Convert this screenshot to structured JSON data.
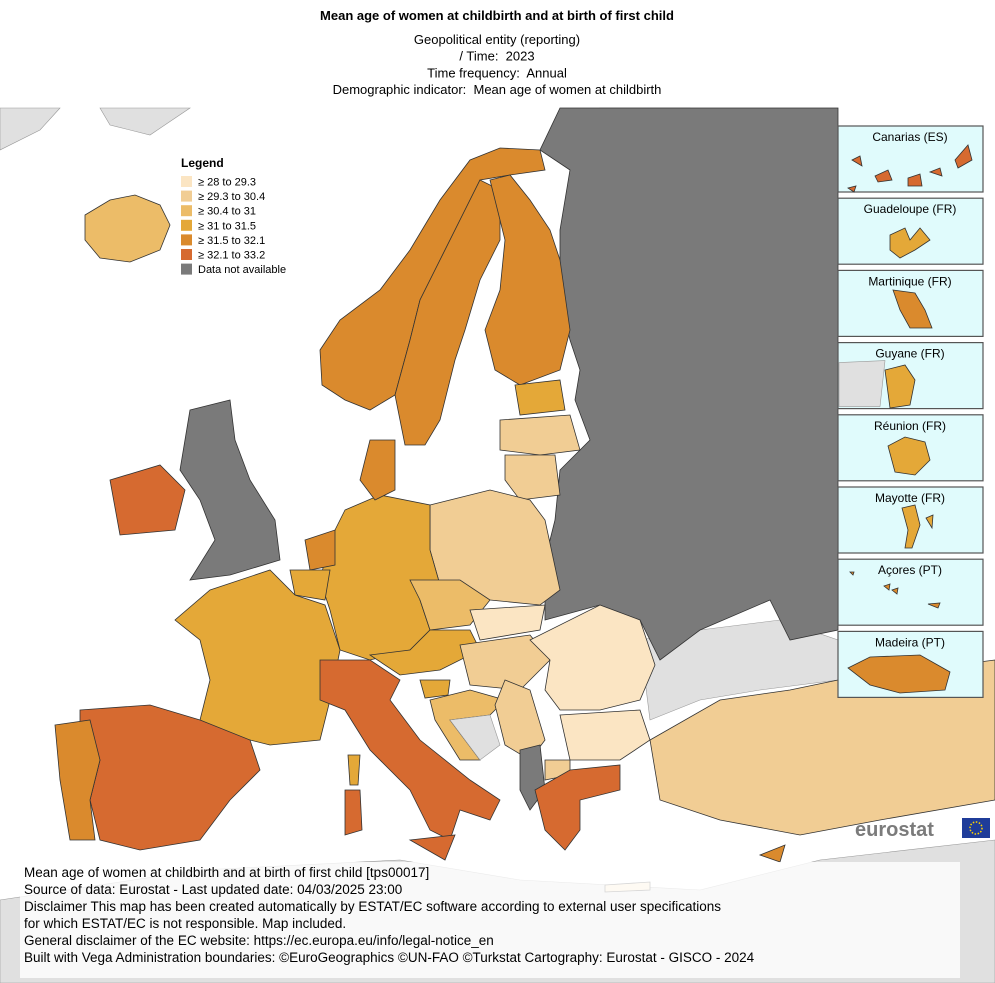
{
  "header": {
    "title": "Mean age of women at childbirth and at birth of first child",
    "subtitle_lines": [
      "Geopolitical entity (reporting)",
      "/ Time:  2023",
      "Time frequency:  Annual",
      "Demographic indicator:  Mean age of women at childbirth"
    ]
  },
  "legend": {
    "title": "Legend",
    "classes": [
      {
        "label": "≥ 28 to 29.3",
        "color": "#fbe5c3"
      },
      {
        "label": "≥ 29.3 to 30.4",
        "color": "#f1cd94"
      },
      {
        "label": "≥ 30.4 to 31",
        "color": "#ecbc68"
      },
      {
        "label": "≥ 31 to 31.5",
        "color": "#e4a838"
      },
      {
        "label": "≥ 31.5 to 32.1",
        "color": "#da8a2d"
      },
      {
        "label": "≥ 32.1 to 33.2",
        "color": "#d66a30"
      },
      {
        "label": "Data not available",
        "color": "#7a7a7a"
      }
    ]
  },
  "insets": [
    "Canarias (ES)",
    "Guadeloupe (FR)",
    "Martinique (FR)",
    "Guyane (FR)",
    "Réunion (FR)",
    "Mayotte (FR)",
    "Açores (PT)",
    "Madeira (PT)"
  ],
  "logo": "eurostat",
  "footer": [
    "Mean age of women at childbirth and at birth of first child [tps00017]",
    "Source of data: Eurostat - Last updated date: 04/03/2025 23:00",
    "Disclaimer This map has been created automatically by ESTAT/EC software according to external user specifications",
    "for which ESTAT/EC is not responsible. Map included.",
    "General disclaimer of the EC website: https://ec.europa.eu/info/legal-notice_en",
    "Built with Vega Administration boundaries: ©EuroGeographics ©UN-FAO ©Turkstat Cartography: Eurostat - GISCO - 2024"
  ]
}
